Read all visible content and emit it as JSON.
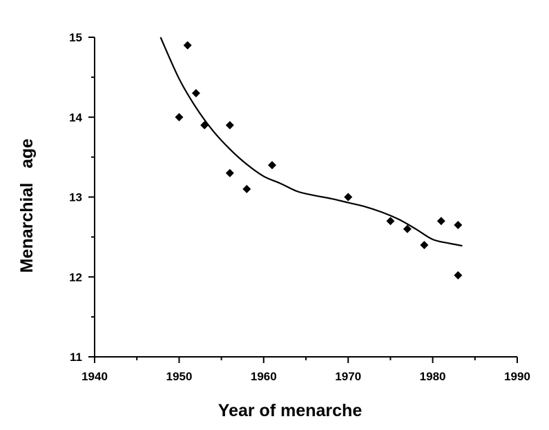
{
  "chart_data": {
    "type": "scatter",
    "title": "",
    "xlabel": "Year of menarche",
    "ylabel": "Menarchial   age",
    "xlim": [
      1940,
      1990
    ],
    "ylim": [
      11,
      15
    ],
    "xticks": [
      "1940",
      "1950",
      "1960",
      "1970",
      "1980",
      "1990"
    ],
    "yticks": [
      "11",
      "12",
      "13",
      "14",
      "15"
    ],
    "grid": false,
    "legend": "none",
    "colors": {
      "marker": "#000000",
      "curve": "#000000",
      "axis": "#000000"
    },
    "points": [
      {
        "x": 1950,
        "y": 14.0
      },
      {
        "x": 1951,
        "y": 14.9
      },
      {
        "x": 1952,
        "y": 14.3
      },
      {
        "x": 1953,
        "y": 13.9
      },
      {
        "x": 1956,
        "y": 13.9
      },
      {
        "x": 1956,
        "y": 13.3
      },
      {
        "x": 1958,
        "y": 13.1
      },
      {
        "x": 1961,
        "y": 13.4
      },
      {
        "x": 1970,
        "y": 13.0
      },
      {
        "x": 1975,
        "y": 12.7
      },
      {
        "x": 1977,
        "y": 12.6
      },
      {
        "x": 1979,
        "y": 12.4
      },
      {
        "x": 1981,
        "y": 12.7
      },
      {
        "x": 1983,
        "y": 12.65
      },
      {
        "x": 1983,
        "y": 12.02
      }
    ],
    "fitted_curve": [
      {
        "x": 1947.8,
        "y": 15.0
      },
      {
        "x": 1950,
        "y": 14.48
      },
      {
        "x": 1952,
        "y": 14.12
      },
      {
        "x": 1954,
        "y": 13.83
      },
      {
        "x": 1956,
        "y": 13.6
      },
      {
        "x": 1958,
        "y": 13.41
      },
      {
        "x": 1960,
        "y": 13.26
      },
      {
        "x": 1962,
        "y": 13.17
      },
      {
        "x": 1964,
        "y": 13.07
      },
      {
        "x": 1966,
        "y": 13.02
      },
      {
        "x": 1968,
        "y": 12.98
      },
      {
        "x": 1970,
        "y": 12.93
      },
      {
        "x": 1972,
        "y": 12.88
      },
      {
        "x": 1974,
        "y": 12.81
      },
      {
        "x": 1976,
        "y": 12.72
      },
      {
        "x": 1978,
        "y": 12.6
      },
      {
        "x": 1980,
        "y": 12.47
      },
      {
        "x": 1982,
        "y": 12.42
      },
      {
        "x": 1983.5,
        "y": 12.39
      }
    ]
  }
}
